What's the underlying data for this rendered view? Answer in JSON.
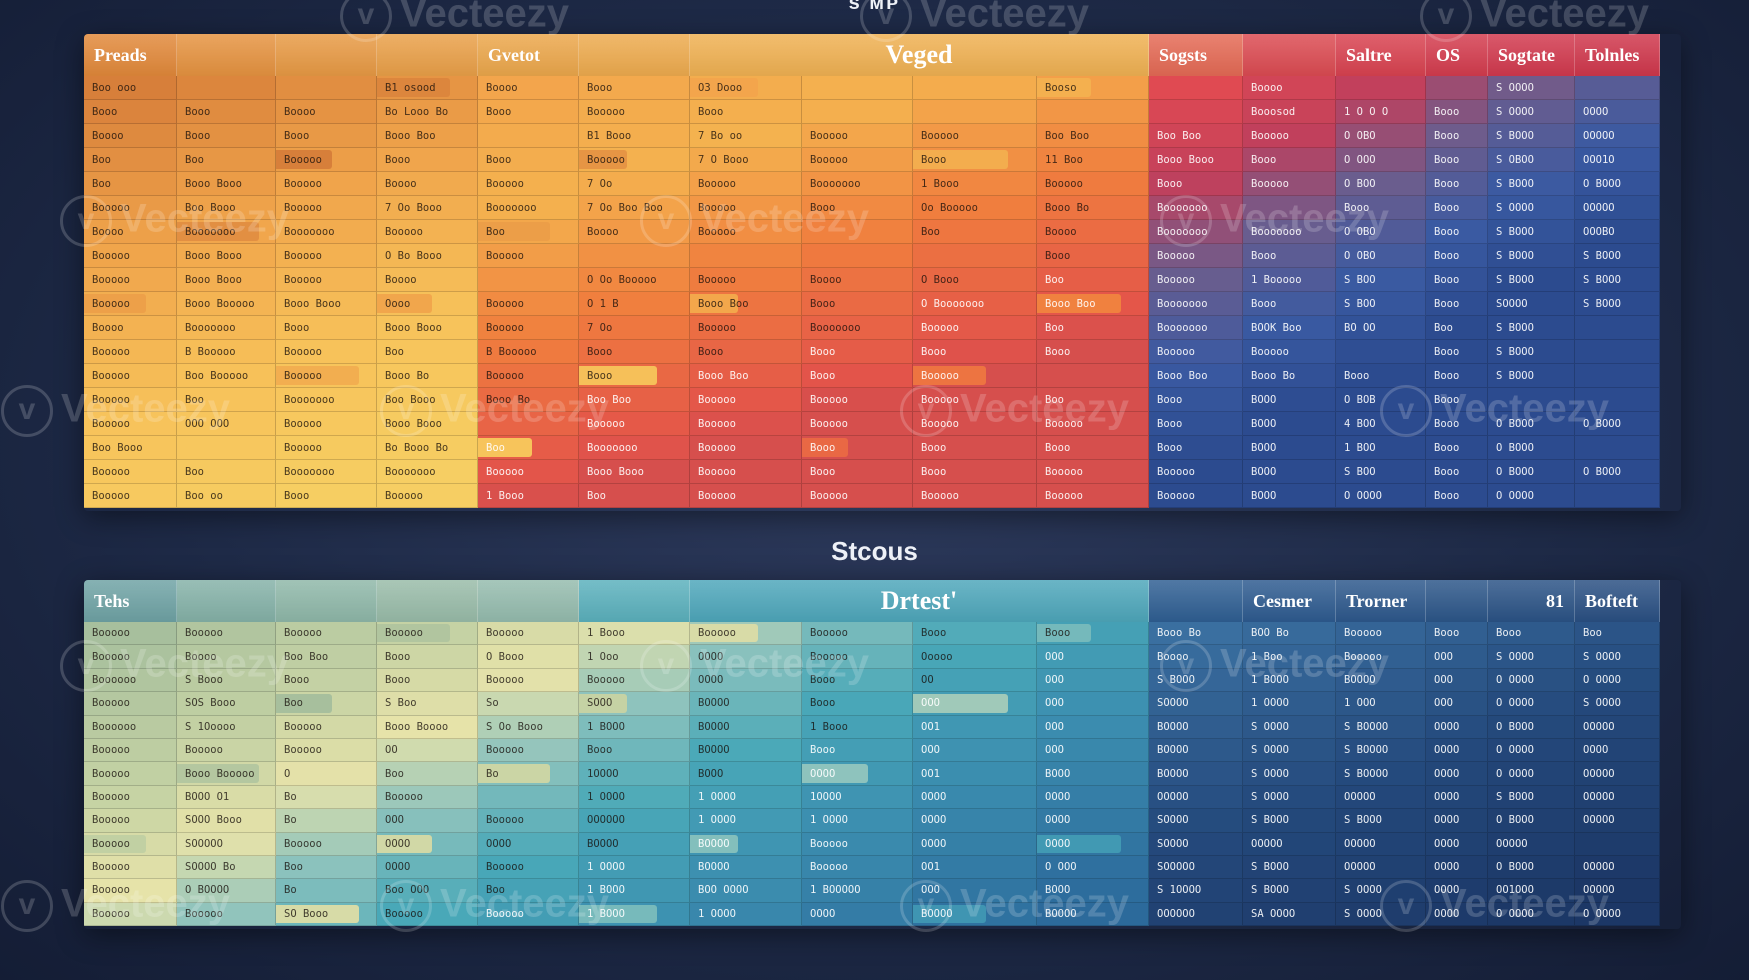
{
  "top_table": {
    "section_title": "s ᴍᴩ",
    "headers": [
      "Preads",
      "",
      "",
      "",
      "Gvetot",
      "",
      "Veged",
      "",
      "",
      "",
      "Sogsts",
      "",
      "Saltre",
      "OS",
      "Sogtate",
      "Tolnles"
    ],
    "rows": [
      [
        "Boo ooo",
        "",
        "",
        "B1 osood",
        "Boooo",
        "Booo",
        "O3 Dooo",
        "",
        "",
        "Booso",
        "",
        "Boooo",
        "",
        "",
        "S OOOO",
        ""
      ],
      [
        "Booo",
        "Booo",
        "Boooo",
        "Bo Looo Bo",
        "Booo",
        "Booooo",
        "Booo",
        "",
        "",
        "",
        "",
        "Booosod",
        "1 O O O",
        "Booo",
        "S OOOO",
        "OOOO"
      ],
      [
        "Boooo",
        "Booo",
        "Booo",
        "Booo Boo",
        "",
        "B1 Booo",
        "7 Bo oo",
        "Booooo",
        "Booooo",
        "Boo Boo",
        "Boo Boo",
        "Booooo",
        "O OBO",
        "Booo",
        "S BOOO",
        "OOOOO"
      ],
      [
        "Boo",
        "Boo",
        "Booooo",
        "Booo",
        "Booo",
        "Booooo",
        "7 O Booo",
        "Booooo",
        "Booo",
        "11 Boo",
        "Booo Booo",
        "Booo",
        "O OOO",
        "Booo",
        "S OBOO",
        "OOO1O"
      ],
      [
        "Boo",
        "Booo Booo",
        "Booooo",
        "Boooo",
        "Booooo",
        "7 Oo",
        "Booooo",
        "Booooooo",
        "1 Booo",
        "Booooo",
        "Booo",
        "Booooo",
        "O BOO",
        "Booo",
        "S BOOO",
        "O BOOO"
      ],
      [
        "Booooo",
        "Boo Booo",
        "Booooo",
        "7 Oo Booo",
        "Booooooo",
        "7 Oo Boo Boo",
        "Booooo",
        "Booo",
        "Oo Booooo",
        "Booo Bo",
        "Booooooo",
        "",
        "Booo",
        "Booo",
        "S OOOO",
        "OOOOO"
      ],
      [
        "Boooo",
        "Booooooo",
        "Booooooo",
        "Booooo",
        "Boo",
        "Boooo",
        "Booooo",
        "",
        "Boo",
        "Boooo",
        "Booooooo",
        "Booooooo",
        "O OBO",
        "Booo",
        "S BOOO",
        "OOOBO"
      ],
      [
        "Booooo",
        "Booo Booo",
        "Booooo",
        "O Bo Booo",
        "Booooo",
        "",
        "",
        "",
        "",
        "Booo",
        "Booooo",
        "Booo",
        "O OBO",
        "Booo",
        "S BOOO",
        "S BOOO"
      ],
      [
        "Booooo",
        "Booo Booo",
        "Booooo",
        "Boooo",
        "",
        "O Oo Booooo",
        "Booooo",
        "Boooo",
        "O Booo",
        "Boo",
        "Booooo",
        "1 Booooo",
        "S BOO",
        "Booo",
        "S BOOO",
        "S BOOO"
      ],
      [
        "Booooo",
        "Booo Booooo",
        "Booo Booo",
        "Oooo",
        "Booooo",
        "O 1 B",
        "Booo Boo",
        "Booo",
        "O Booooooo",
        "Booo Boo",
        "Booooooo",
        "Booo",
        "S BOO",
        "Booo",
        "SOOOO",
        "S BOOO"
      ],
      [
        "Boooo",
        "Booooooo",
        "Booo",
        "Booo Booo",
        "Booooo",
        "7 Oo",
        "Booooo",
        "Booooooo",
        "Booooo",
        "Boo",
        "Booooooo",
        "BOOK Boo",
        "BO OO",
        "Boo",
        "S BOOO",
        ""
      ],
      [
        "Booooo",
        "B Booooo",
        "Booooo",
        "Boo",
        "B Booooo",
        "Booo",
        "Booo",
        "Booo",
        "Booo",
        "Booo",
        "Booooo",
        "Booooo",
        "",
        "Booo",
        "S BOOO",
        ""
      ],
      [
        "Booooo",
        "Boo Booooo",
        "Booooo",
        "Booo Bo",
        "Booooo",
        "Booo",
        "Booo Boo",
        "Booo",
        "Booooo",
        "",
        "Booo Boo",
        "Booo Bo",
        "Booo",
        "Booo",
        "S BOOO",
        ""
      ],
      [
        "Booooo",
        "Boo",
        "Booooooo",
        "Boo Booo",
        "Booo Bo",
        "Boo Boo",
        "Booooo",
        "Booooo",
        "Booooo",
        "Boo",
        "Booo",
        "BOOO",
        "O BOB",
        "Booo",
        "",
        ""
      ],
      [
        "Booooo",
        "OOO OOO",
        "Booooo",
        "Booo Booo",
        "",
        "Booooo",
        "Booooo",
        "Booooo",
        "Booooo",
        "Booooo",
        "Booo",
        "BOOO",
        "4 BOO",
        "Booo",
        "O BOOO",
        "O BOOO"
      ],
      [
        "Boo Booo",
        "",
        "Booooo",
        "Bo Booo Bo",
        "Boo",
        "Booooooo",
        "Booooo",
        "Booo",
        "Booo",
        "Booo",
        "Booo",
        "BOOO",
        "1 BOO",
        "Booo",
        "O BOOO",
        ""
      ],
      [
        "Booooo",
        "Boo",
        "Booooooo",
        "Booooooo",
        "Booooo",
        "Booo Booo",
        "Booooo",
        "Booo",
        "Booo",
        "Booooo",
        "Booooo",
        "BOOO",
        "S BOO",
        "Booo",
        "O BOOO",
        "O BOOO"
      ],
      [
        "Booooo",
        "Boo oo",
        "Booo",
        "Booooo",
        "1 Booo",
        "Boo",
        "Booooo",
        "Booooo",
        "Booooo",
        "Booooo",
        "Booooo",
        "BOOO",
        "O OOOO",
        "Booo",
        "O OOOO",
        ""
      ]
    ]
  },
  "bottom_table": {
    "section_title": "Stcous",
    "headers": [
      "Tehs",
      "",
      "",
      "",
      "",
      "",
      "Drtest'",
      "",
      "",
      "",
      "",
      "Cesmer",
      "Trorner",
      "",
      "81",
      "Bofteft"
    ],
    "rows": [
      [
        "Booooo",
        "Booooo",
        "Booooo",
        "Booooo",
        "Booooo",
        "1 Booo",
        "Booooo",
        "Booooo",
        "Booo",
        "Booo",
        "Booo Bo",
        "BOO Bo",
        "Booooo",
        "Booo",
        "Booo",
        "Boo"
      ],
      [
        "Booooo",
        "Boooo",
        "Boo Boo",
        "Booo",
        "O Booo",
        "1 Ooo",
        "OOOO",
        "Booooo",
        "Ooooo",
        "OOO",
        "Boooo",
        "1 Boo",
        "Booooo",
        "OOO",
        "S OOOO",
        "S OOOO"
      ],
      [
        "Boooooo",
        "S Booo",
        "Booo",
        "Booo",
        "Booooo",
        "Booooo",
        "OOOO",
        "Booo",
        "OO",
        "OOO",
        "S BOOO",
        "1 BOOO",
        "BOOOO",
        "OOO",
        "O OOOO",
        "O OOOO"
      ],
      [
        "Booooo",
        "SOS Booo",
        "Boo",
        "S Boo",
        "So",
        "SOOO",
        "BOOOO",
        "Booo",
        "OOO",
        "OOO",
        "SOOOO",
        "1 OOOO",
        "1 OOO",
        "OOO",
        "O OOOO",
        "S OOOO"
      ],
      [
        "Boooooo",
        "S 1Ooooo",
        "Booooo",
        "Booo Boooo",
        "S Oo Booo",
        "1 BOOO",
        "BOOOO",
        "1 Booo",
        "OO1",
        "OOO",
        "BOOOO",
        "S OOOO",
        "S BOOOO",
        "OOOO",
        "O BOOO",
        "OOOOO"
      ],
      [
        "Booooo",
        "Booooo",
        "Booooo",
        "OO",
        "Booooo",
        "Booo",
        "BOOOO",
        "Booo",
        "OOO",
        "OOO",
        "BOOOO",
        "S OOOO",
        "S BOOOO",
        "OOOO",
        "O OOOO",
        "OOOO"
      ],
      [
        "Booooo",
        "Booo Booooo",
        "O",
        "Boo",
        "Bo",
        "1OOOO",
        "BOOO",
        "OOOO",
        "OO1",
        "BOOO",
        "BOOOO",
        "S OOOO",
        "S BOOOO",
        "OOOO",
        "O OOOO",
        "OOOOO"
      ],
      [
        "Booooo",
        "BOOO O1",
        "Bo",
        "Booooo",
        "",
        "1 OOOO",
        "1 OOOO",
        "1OOOO",
        "OOOO",
        "OOOO",
        "OOOOO",
        "S OOOO",
        "OOOOO",
        "OOOO",
        "S BOOO",
        "OOOOO"
      ],
      [
        "Booooo",
        "SOOO Booo",
        "Bo",
        "OOO",
        "Booooo",
        "OOOOOO",
        "1 OOOO",
        "1 OOOO",
        "OOOO",
        "OOOO",
        "SOOOO",
        "S BOOO",
        "S BOOO",
        "OOOO",
        "O BOOO",
        "OOOOO"
      ],
      [
        "Booooo",
        "SOOOOO",
        "Booooo",
        "OOOO",
        "OOOO",
        "BOOOO",
        "BOOOO",
        "Booooo",
        "OOOO",
        "OOOO",
        "SOOOO",
        "OOOOO",
        "OOOOO",
        "OOOO",
        "OOOOO",
        ""
      ],
      [
        "Booooo",
        "SOOOO Bo",
        "Boo",
        "OOOO",
        "Booooo",
        "1 OOOO",
        "BOOOO",
        "Booooo",
        "OO1",
        "O OOO",
        "SOOOOO",
        "S BOOO",
        "OOOOO",
        "OOOO",
        "O BOOO",
        "OOOOO"
      ],
      [
        "Booooo",
        "O BOOOO",
        "Bo",
        "Boo OOO",
        "Boo",
        "1 BOOO",
        "BOO OOOO",
        "1 BOOOOO",
        "OOO",
        "BOOO",
        "S 1OOOO",
        "S BOOO",
        "S OOOO",
        "OOOO",
        "OO1OOO",
        "OOOOO"
      ],
      [
        "Booooo",
        "Booooo",
        "SO Booo",
        "Booooo",
        "Booooo",
        "1 BOOO",
        "1 OOOO",
        "OOOO",
        "BOOOO",
        "BOOOO",
        "OOOOOO",
        "SA OOOO",
        "S OOOO",
        "OOOO",
        "O OOOO",
        "O OOOO"
      ]
    ]
  },
  "watermark": {
    "text": "Vecteezy",
    "icon": "vecteezy-v-icon"
  },
  "colors": {
    "background": "#1e2a47",
    "top_left_yellow": "#f6c75f",
    "top_orange": "#ef8a3c",
    "top_red": "#d9434f",
    "top_purple": "#563a6b",
    "top_blue": "#2f4f9a",
    "bottom_sage": "#bccfa8",
    "bottom_teal": "#3e9fb4",
    "bottom_navy": "#1e3c6e"
  }
}
